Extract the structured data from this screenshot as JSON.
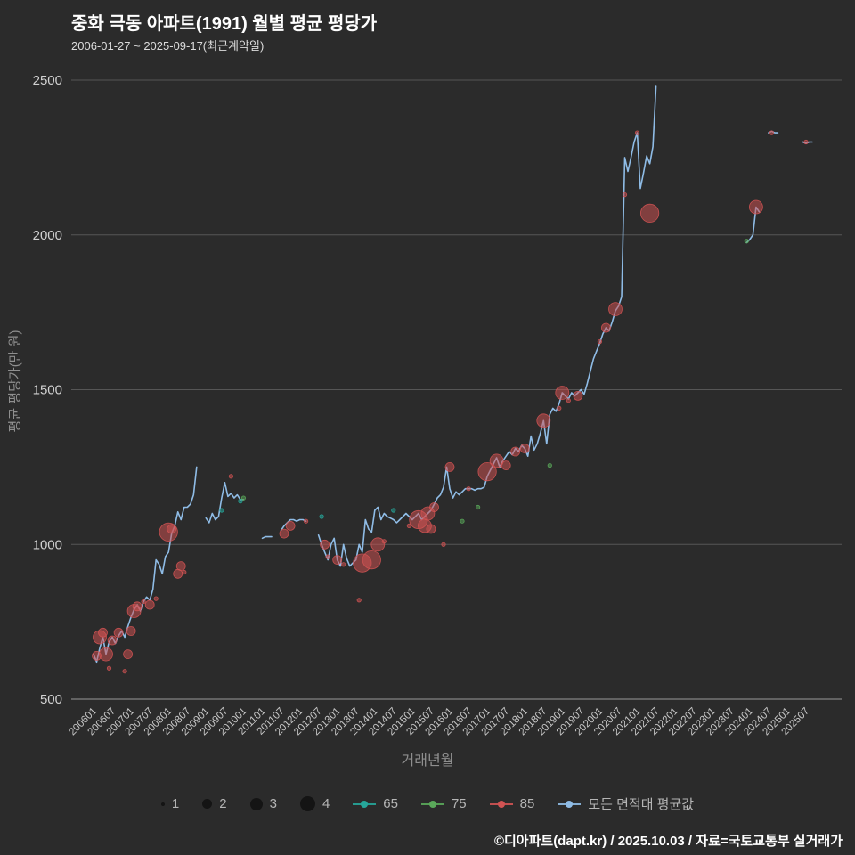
{
  "header": {
    "title": "중화 극동 아파트(1991) 월별 평균 평당가",
    "subtitle": "2006-01-27 ~ 2025-09-17(최근계약일)"
  },
  "footer": {
    "credit": "©디아파트(dapt.kr) / 2025.10.03 / 자료=국토교통부 실거래가"
  },
  "chart_data": {
    "type": "scatter",
    "title": "중화 극동 아파트(1991) 월별 평균 평당가",
    "subtitle": "2006-01-27 ~ 2025-09-17(최근계약일)",
    "xlabel": "거래년월",
    "ylabel": "평균 평당가(만 원)",
    "ylim": [
      500,
      2500
    ],
    "y_ticks": [
      500,
      1000,
      1500,
      2000,
      2500
    ],
    "grid": "horizontal",
    "legend_position": "bottom",
    "size_legend": [
      1,
      2,
      3,
      4
    ],
    "x_tick_labels": [
      "200601",
      "200607",
      "200701",
      "200707",
      "200801",
      "200807",
      "200901",
      "200907",
      "201001",
      "201101",
      "201107",
      "201201",
      "201207",
      "201301",
      "201307",
      "201401",
      "201407",
      "201501",
      "201507",
      "201601",
      "201607",
      "201701",
      "201707",
      "201801",
      "201807",
      "201901",
      "201907",
      "202001",
      "202007",
      "202101",
      "202107",
      "202201",
      "202207",
      "202301",
      "202307",
      "202401",
      "202407",
      "202501",
      "202507"
    ],
    "line_series": {
      "name": "모든 면적대 평균값",
      "color": "#8fbce6",
      "segments": [
        [
          [
            "200601",
            645
          ],
          [
            "200602",
            620
          ],
          [
            "200603",
            665
          ],
          [
            "200604",
            700
          ],
          [
            "200605",
            645
          ],
          [
            "200606",
            685
          ],
          [
            "200607",
            700
          ],
          [
            "200608",
            680
          ],
          [
            "200609",
            705
          ],
          [
            "200610",
            720
          ],
          [
            "200611",
            700
          ],
          [
            "200612",
            735
          ],
          [
            "200701",
            765
          ],
          [
            "200702",
            790
          ],
          [
            "200703",
            805
          ],
          [
            "200704",
            785
          ],
          [
            "200705",
            815
          ],
          [
            "200706",
            830
          ],
          [
            "200707",
            820
          ],
          [
            "200708",
            855
          ],
          [
            "200709",
            950
          ],
          [
            "200710",
            935
          ],
          [
            "200711",
            905
          ],
          [
            "200712",
            960
          ],
          [
            "200801",
            975
          ],
          [
            "200802",
            1035
          ],
          [
            "200803",
            1060
          ],
          [
            "200804",
            1105
          ],
          [
            "200805",
            1080
          ],
          [
            "200806",
            1120
          ],
          [
            "200807",
            1120
          ],
          [
            "200808",
            1130
          ],
          [
            "200809",
            1160
          ],
          [
            "200810",
            1250
          ]
        ],
        [
          [
            "200901",
            1085
          ],
          [
            "200902",
            1070
          ],
          [
            "200903",
            1100
          ],
          [
            "200904",
            1080
          ],
          [
            "200905",
            1090
          ],
          [
            "200906",
            1150
          ],
          [
            "200907",
            1200
          ],
          [
            "200908",
            1155
          ],
          [
            "200909",
            1165
          ],
          [
            "200910",
            1150
          ],
          [
            "200911",
            1160
          ],
          [
            "200912",
            1145
          ],
          [
            "201001",
            1145
          ]
        ],
        [
          [
            "201101",
            1020
          ],
          [
            "201102",
            1025
          ],
          [
            "201103",
            1025
          ],
          [
            "201104",
            1025
          ]
        ],
        [
          [
            "201107",
            1045
          ],
          [
            "201108",
            1060
          ],
          [
            "201109",
            1070
          ],
          [
            "201110",
            1080
          ],
          [
            "201111",
            1080
          ],
          [
            "201112",
            1075
          ],
          [
            "201201",
            1080
          ],
          [
            "201202",
            1080
          ],
          [
            "201203",
            1075
          ]
        ],
        [
          [
            "201207",
            1030
          ],
          [
            "201208",
            1000
          ],
          [
            "201209",
            975
          ],
          [
            "201210",
            950
          ],
          [
            "201211",
            1000
          ],
          [
            "201212",
            1020
          ],
          [
            "201301",
            950
          ],
          [
            "201302",
            930
          ],
          [
            "201303",
            1000
          ],
          [
            "201304",
            955
          ],
          [
            "201305",
            930
          ],
          [
            "201306",
            940
          ],
          [
            "201307",
            950
          ],
          [
            "201308",
            1000
          ],
          [
            "201309",
            975
          ],
          [
            "201310",
            1080
          ],
          [
            "201311",
            1050
          ],
          [
            "201312",
            1040
          ],
          [
            "201401",
            1110
          ],
          [
            "201402",
            1120
          ],
          [
            "201403",
            1080
          ],
          [
            "201404",
            1100
          ],
          [
            "201405",
            1090
          ],
          [
            "201406",
            1085
          ],
          [
            "201407",
            1080
          ],
          [
            "201408",
            1070
          ],
          [
            "201409",
            1080
          ],
          [
            "201410",
            1090
          ],
          [
            "201411",
            1100
          ],
          [
            "201412",
            1090
          ],
          [
            "201501",
            1080
          ],
          [
            "201502",
            1090
          ],
          [
            "201503",
            1100
          ],
          [
            "201504",
            1080
          ],
          [
            "201505",
            1090
          ],
          [
            "201506",
            1100
          ],
          [
            "201507",
            1110
          ],
          [
            "201508",
            1130
          ],
          [
            "201509",
            1150
          ],
          [
            "201510",
            1160
          ],
          [
            "201511",
            1185
          ],
          [
            "201512",
            1250
          ],
          [
            "201601",
            1180
          ],
          [
            "201602",
            1150
          ],
          [
            "201603",
            1170
          ],
          [
            "201604",
            1160
          ],
          [
            "201605",
            1170
          ],
          [
            "201606",
            1180
          ],
          [
            "201607",
            1180
          ],
          [
            "201608",
            1180
          ],
          [
            "201609",
            1175
          ],
          [
            "201610",
            1180
          ],
          [
            "201611",
            1180
          ],
          [
            "201612",
            1185
          ],
          [
            "201701",
            1220
          ],
          [
            "201702",
            1240
          ],
          [
            "201703",
            1260
          ],
          [
            "201704",
            1280
          ],
          [
            "201705",
            1250
          ],
          [
            "201706",
            1270
          ],
          [
            "201707",
            1285
          ],
          [
            "201708",
            1300
          ],
          [
            "201709",
            1290
          ],
          [
            "201710",
            1310
          ],
          [
            "201711",
            1300
          ],
          [
            "201712",
            1320
          ],
          [
            "201801",
            1310
          ],
          [
            "201802",
            1285
          ],
          [
            "201803",
            1350
          ],
          [
            "201804",
            1305
          ],
          [
            "201805",
            1325
          ],
          [
            "201806",
            1360
          ],
          [
            "201807",
            1400
          ],
          [
            "201808",
            1325
          ],
          [
            "201809",
            1420
          ],
          [
            "201810",
            1440
          ],
          [
            "201811",
            1430
          ],
          [
            "201812",
            1455
          ],
          [
            "201901",
            1490
          ],
          [
            "201902",
            1480
          ],
          [
            "201903",
            1470
          ],
          [
            "201904",
            1490
          ],
          [
            "201905",
            1480
          ],
          [
            "201906",
            1490
          ],
          [
            "201907",
            1500
          ],
          [
            "201908",
            1485
          ],
          [
            "201909",
            1520
          ],
          [
            "201910",
            1560
          ],
          [
            "201911",
            1600
          ],
          [
            "201912",
            1625
          ],
          [
            "202001",
            1650
          ],
          [
            "202002",
            1680
          ],
          [
            "202003",
            1700
          ],
          [
            "202004",
            1690
          ],
          [
            "202005",
            1720
          ],
          [
            "202006",
            1755
          ],
          [
            "202007",
            1770
          ],
          [
            "202008",
            1800
          ],
          [
            "202009",
            2250
          ],
          [
            "202010",
            2205
          ],
          [
            "202011",
            2250
          ],
          [
            "202012",
            2300
          ],
          [
            "202101",
            2330
          ],
          [
            "202102",
            2150
          ],
          [
            "202103",
            2200
          ],
          [
            "202104",
            2255
          ],
          [
            "202105",
            2230
          ],
          [
            "202106",
            2285
          ],
          [
            "202107",
            2480
          ]
        ],
        [
          [
            "202312",
            1975
          ],
          [
            "202401",
            1985
          ],
          [
            "202402",
            2000
          ],
          [
            "202403",
            2090
          ],
          [
            "202404",
            2075
          ]
        ],
        [
          [
            "202407",
            2330
          ],
          [
            "202408",
            2335
          ],
          [
            "202409",
            2330
          ],
          [
            "202410",
            2330
          ]
        ],
        [
          [
            "202506",
            2300
          ],
          [
            "202507",
            2295
          ],
          [
            "202508",
            2300
          ],
          [
            "202509",
            2300
          ]
        ]
      ]
    },
    "bubble_series": [
      {
        "name": "65",
        "color": "#26a69a",
        "points": [
          [
            "200906",
            1110,
            1
          ],
          [
            "200912",
            1140,
            1
          ],
          [
            "201208",
            1090,
            1
          ],
          [
            "201407",
            1110,
            1
          ]
        ]
      },
      {
        "name": "75",
        "color": "#5aa95a",
        "points": [
          [
            "201001",
            1150,
            1
          ],
          [
            "201605",
            1075,
            1
          ],
          [
            "201610",
            1120,
            1
          ],
          [
            "201809",
            1255,
            1
          ],
          [
            "202312",
            1980,
            1
          ]
        ]
      },
      {
        "name": "85",
        "color": "#d15353",
        "points": [
          [
            "200602",
            640,
            2
          ],
          [
            "200603",
            700,
            3
          ],
          [
            "200604",
            715,
            2
          ],
          [
            "200605",
            645,
            3
          ],
          [
            "200606",
            600,
            1
          ],
          [
            "200607",
            690,
            2
          ],
          [
            "200609",
            715,
            2
          ],
          [
            "200611",
            590,
            1
          ],
          [
            "200612",
            645,
            2
          ],
          [
            "200701",
            720,
            2
          ],
          [
            "200702",
            785,
            3
          ],
          [
            "200703",
            800,
            2
          ],
          [
            "200705",
            815,
            1
          ],
          [
            "200707",
            805,
            2
          ],
          [
            "200709",
            825,
            1
          ],
          [
            "200801",
            1040,
            4
          ],
          [
            "200802",
            1050,
            2
          ],
          [
            "200804",
            905,
            2
          ],
          [
            "200805",
            930,
            2
          ],
          [
            "200806",
            910,
            1
          ],
          [
            "200909",
            1220,
            1
          ],
          [
            "201108",
            1035,
            2
          ],
          [
            "201110",
            1060,
            2
          ],
          [
            "201203",
            1075,
            1
          ],
          [
            "201209",
            1000,
            2
          ],
          [
            "201210",
            960,
            1
          ],
          [
            "201301",
            950,
            2
          ],
          [
            "201303",
            935,
            1
          ],
          [
            "201308",
            820,
            1
          ],
          [
            "201309",
            940,
            4
          ],
          [
            "201312",
            950,
            4
          ],
          [
            "201402",
            1000,
            3
          ],
          [
            "201404",
            1010,
            1
          ],
          [
            "201412",
            1060,
            1
          ],
          [
            "201503",
            1080,
            4
          ],
          [
            "201505",
            1060,
            3
          ],
          [
            "201506",
            1100,
            3
          ],
          [
            "201507",
            1050,
            2
          ],
          [
            "201508",
            1120,
            2
          ],
          [
            "201511",
            1000,
            1
          ],
          [
            "201601",
            1250,
            2
          ],
          [
            "201607",
            1180,
            1
          ],
          [
            "201701",
            1235,
            4
          ],
          [
            "201704",
            1270,
            3
          ],
          [
            "201707",
            1255,
            2
          ],
          [
            "201710",
            1300,
            2
          ],
          [
            "201801",
            1310,
            2
          ],
          [
            "201807",
            1400,
            3
          ],
          [
            "201812",
            1440,
            1
          ],
          [
            "201901",
            1490,
            3
          ],
          [
            "201903",
            1465,
            1
          ],
          [
            "201906",
            1480,
            2
          ],
          [
            "202001",
            1655,
            1
          ],
          [
            "202003",
            1700,
            2
          ],
          [
            "202006",
            1760,
            3
          ],
          [
            "202009",
            2130,
            1
          ],
          [
            "202101",
            2330,
            1
          ],
          [
            "202105",
            2070,
            4
          ],
          [
            "202403",
            2090,
            3
          ],
          [
            "202408",
            2330,
            1
          ],
          [
            "202507",
            2300,
            1
          ]
        ]
      }
    ]
  }
}
